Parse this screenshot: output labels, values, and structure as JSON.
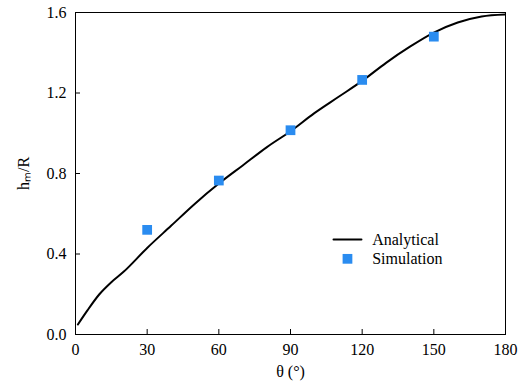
{
  "chart_data": {
    "type": "line",
    "x_label": "θ (°)",
    "y_label": "hₘ/R",
    "xlim": [
      0,
      180
    ],
    "xticks": [
      0,
      30,
      60,
      90,
      120,
      150,
      180
    ],
    "ylim": [
      0,
      1.6
    ],
    "yticks": [
      {
        "value": 0,
        "label": "0.0"
      },
      {
        "value": 0.4,
        "label": "0.4"
      },
      {
        "value": 0.8,
        "label": "0.8"
      },
      {
        "value": 1.2,
        "label": "1.2"
      },
      {
        "value": 1.6,
        "label": "1.6"
      }
    ],
    "legend": "bottom-right",
    "grid": false,
    "series": [
      {
        "name": "Analytical",
        "type": "line",
        "color": "#000000",
        "line_style": "solid",
        "x": [
          1,
          5,
          10,
          15,
          20,
          30,
          40,
          50,
          60,
          70,
          80,
          90,
          100,
          110,
          120,
          130,
          140,
          150,
          160,
          170,
          180
        ],
        "values": [
          0.05,
          0.12,
          0.2,
          0.26,
          0.31,
          0.43,
          0.54,
          0.65,
          0.75,
          0.84,
          0.93,
          1.01,
          1.1,
          1.18,
          1.26,
          1.35,
          1.43,
          1.5,
          1.55,
          1.58,
          1.59
        ]
      },
      {
        "name": "Simulation",
        "type": "scatter",
        "color": "#2a8cf0",
        "marker": "square",
        "x": [
          30,
          60,
          90,
          120,
          150
        ],
        "values": [
          0.52,
          0.765,
          1.015,
          1.265,
          1.48
        ]
      }
    ]
  }
}
